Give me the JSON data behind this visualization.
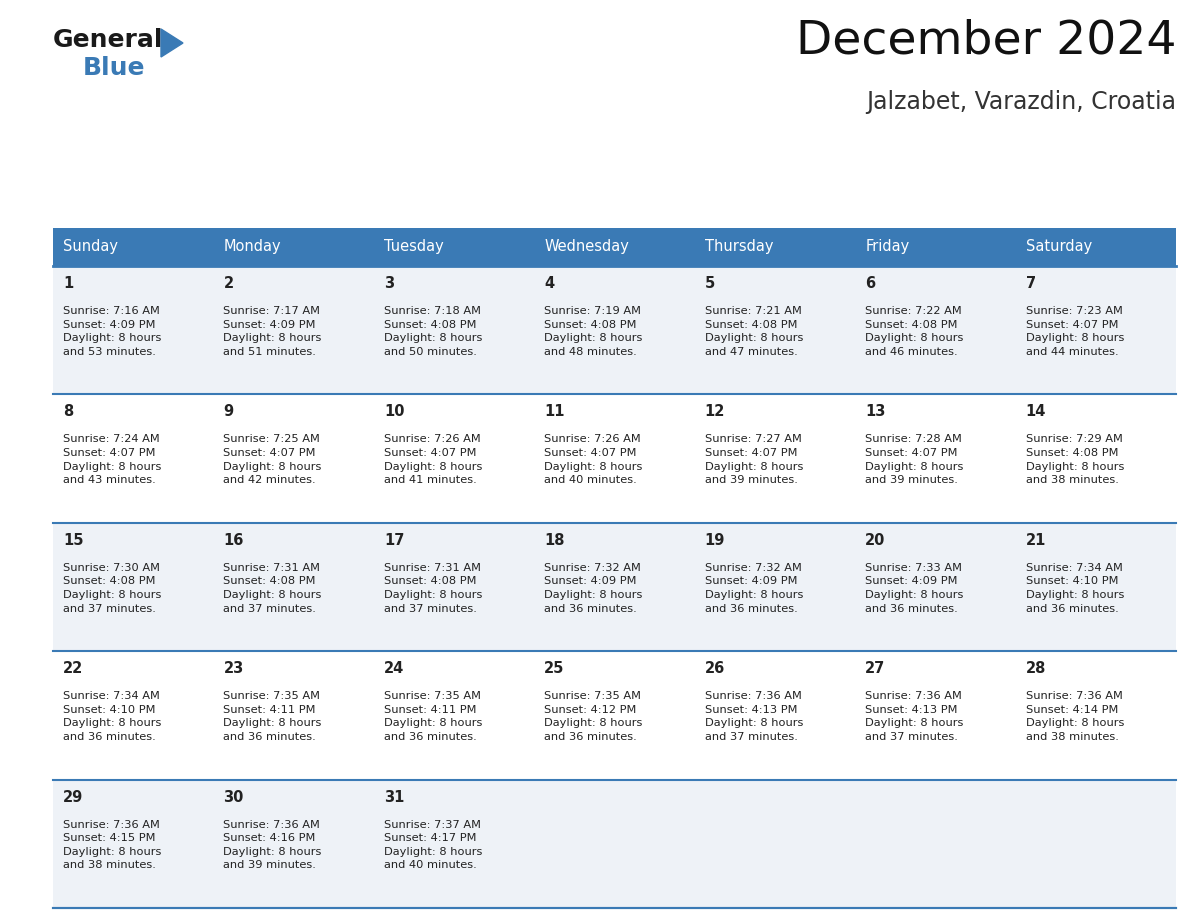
{
  "title": "December 2024",
  "subtitle": "Jalzabet, Varazdin, Croatia",
  "header_color": "#3a7ab5",
  "header_text_color": "#ffffff",
  "days_of_week": [
    "Sunday",
    "Monday",
    "Tuesday",
    "Wednesday",
    "Thursday",
    "Friday",
    "Saturday"
  ],
  "cell_bg_even": "#eef2f7",
  "cell_bg_odd": "#ffffff",
  "row_line_color": "#3a7ab5",
  "text_color": "#222222",
  "calendar": [
    [
      {
        "day": "1",
        "sunrise": "7:16 AM",
        "sunset": "4:09 PM",
        "daylight": "8 hours\nand 53 minutes."
      },
      {
        "day": "2",
        "sunrise": "7:17 AM",
        "sunset": "4:09 PM",
        "daylight": "8 hours\nand 51 minutes."
      },
      {
        "day": "3",
        "sunrise": "7:18 AM",
        "sunset": "4:08 PM",
        "daylight": "8 hours\nand 50 minutes."
      },
      {
        "day": "4",
        "sunrise": "7:19 AM",
        "sunset": "4:08 PM",
        "daylight": "8 hours\nand 48 minutes."
      },
      {
        "day": "5",
        "sunrise": "7:21 AM",
        "sunset": "4:08 PM",
        "daylight": "8 hours\nand 47 minutes."
      },
      {
        "day": "6",
        "sunrise": "7:22 AM",
        "sunset": "4:08 PM",
        "daylight": "8 hours\nand 46 minutes."
      },
      {
        "day": "7",
        "sunrise": "7:23 AM",
        "sunset": "4:07 PM",
        "daylight": "8 hours\nand 44 minutes."
      }
    ],
    [
      {
        "day": "8",
        "sunrise": "7:24 AM",
        "sunset": "4:07 PM",
        "daylight": "8 hours\nand 43 minutes."
      },
      {
        "day": "9",
        "sunrise": "7:25 AM",
        "sunset": "4:07 PM",
        "daylight": "8 hours\nand 42 minutes."
      },
      {
        "day": "10",
        "sunrise": "7:26 AM",
        "sunset": "4:07 PM",
        "daylight": "8 hours\nand 41 minutes."
      },
      {
        "day": "11",
        "sunrise": "7:26 AM",
        "sunset": "4:07 PM",
        "daylight": "8 hours\nand 40 minutes."
      },
      {
        "day": "12",
        "sunrise": "7:27 AM",
        "sunset": "4:07 PM",
        "daylight": "8 hours\nand 39 minutes."
      },
      {
        "day": "13",
        "sunrise": "7:28 AM",
        "sunset": "4:07 PM",
        "daylight": "8 hours\nand 39 minutes."
      },
      {
        "day": "14",
        "sunrise": "7:29 AM",
        "sunset": "4:08 PM",
        "daylight": "8 hours\nand 38 minutes."
      }
    ],
    [
      {
        "day": "15",
        "sunrise": "7:30 AM",
        "sunset": "4:08 PM",
        "daylight": "8 hours\nand 37 minutes."
      },
      {
        "day": "16",
        "sunrise": "7:31 AM",
        "sunset": "4:08 PM",
        "daylight": "8 hours\nand 37 minutes."
      },
      {
        "day": "17",
        "sunrise": "7:31 AM",
        "sunset": "4:08 PM",
        "daylight": "8 hours\nand 37 minutes."
      },
      {
        "day": "18",
        "sunrise": "7:32 AM",
        "sunset": "4:09 PM",
        "daylight": "8 hours\nand 36 minutes."
      },
      {
        "day": "19",
        "sunrise": "7:32 AM",
        "sunset": "4:09 PM",
        "daylight": "8 hours\nand 36 minutes."
      },
      {
        "day": "20",
        "sunrise": "7:33 AM",
        "sunset": "4:09 PM",
        "daylight": "8 hours\nand 36 minutes."
      },
      {
        "day": "21",
        "sunrise": "7:34 AM",
        "sunset": "4:10 PM",
        "daylight": "8 hours\nand 36 minutes."
      }
    ],
    [
      {
        "day": "22",
        "sunrise": "7:34 AM",
        "sunset": "4:10 PM",
        "daylight": "8 hours\nand 36 minutes."
      },
      {
        "day": "23",
        "sunrise": "7:35 AM",
        "sunset": "4:11 PM",
        "daylight": "8 hours\nand 36 minutes."
      },
      {
        "day": "24",
        "sunrise": "7:35 AM",
        "sunset": "4:11 PM",
        "daylight": "8 hours\nand 36 minutes."
      },
      {
        "day": "25",
        "sunrise": "7:35 AM",
        "sunset": "4:12 PM",
        "daylight": "8 hours\nand 36 minutes."
      },
      {
        "day": "26",
        "sunrise": "7:36 AM",
        "sunset": "4:13 PM",
        "daylight": "8 hours\nand 37 minutes."
      },
      {
        "day": "27",
        "sunrise": "7:36 AM",
        "sunset": "4:13 PM",
        "daylight": "8 hours\nand 37 minutes."
      },
      {
        "day": "28",
        "sunrise": "7:36 AM",
        "sunset": "4:14 PM",
        "daylight": "8 hours\nand 38 minutes."
      }
    ],
    [
      {
        "day": "29",
        "sunrise": "7:36 AM",
        "sunset": "4:15 PM",
        "daylight": "8 hours\nand 38 minutes."
      },
      {
        "day": "30",
        "sunrise": "7:36 AM",
        "sunset": "4:16 PM",
        "daylight": "8 hours\nand 39 minutes."
      },
      {
        "day": "31",
        "sunrise": "7:37 AM",
        "sunset": "4:17 PM",
        "daylight": "8 hours\nand 40 minutes."
      },
      null,
      null,
      null,
      null
    ]
  ],
  "logo_color1": "#1a1a1a",
  "logo_color2": "#3a7ab5",
  "logo_triangle_color": "#3a7ab5"
}
